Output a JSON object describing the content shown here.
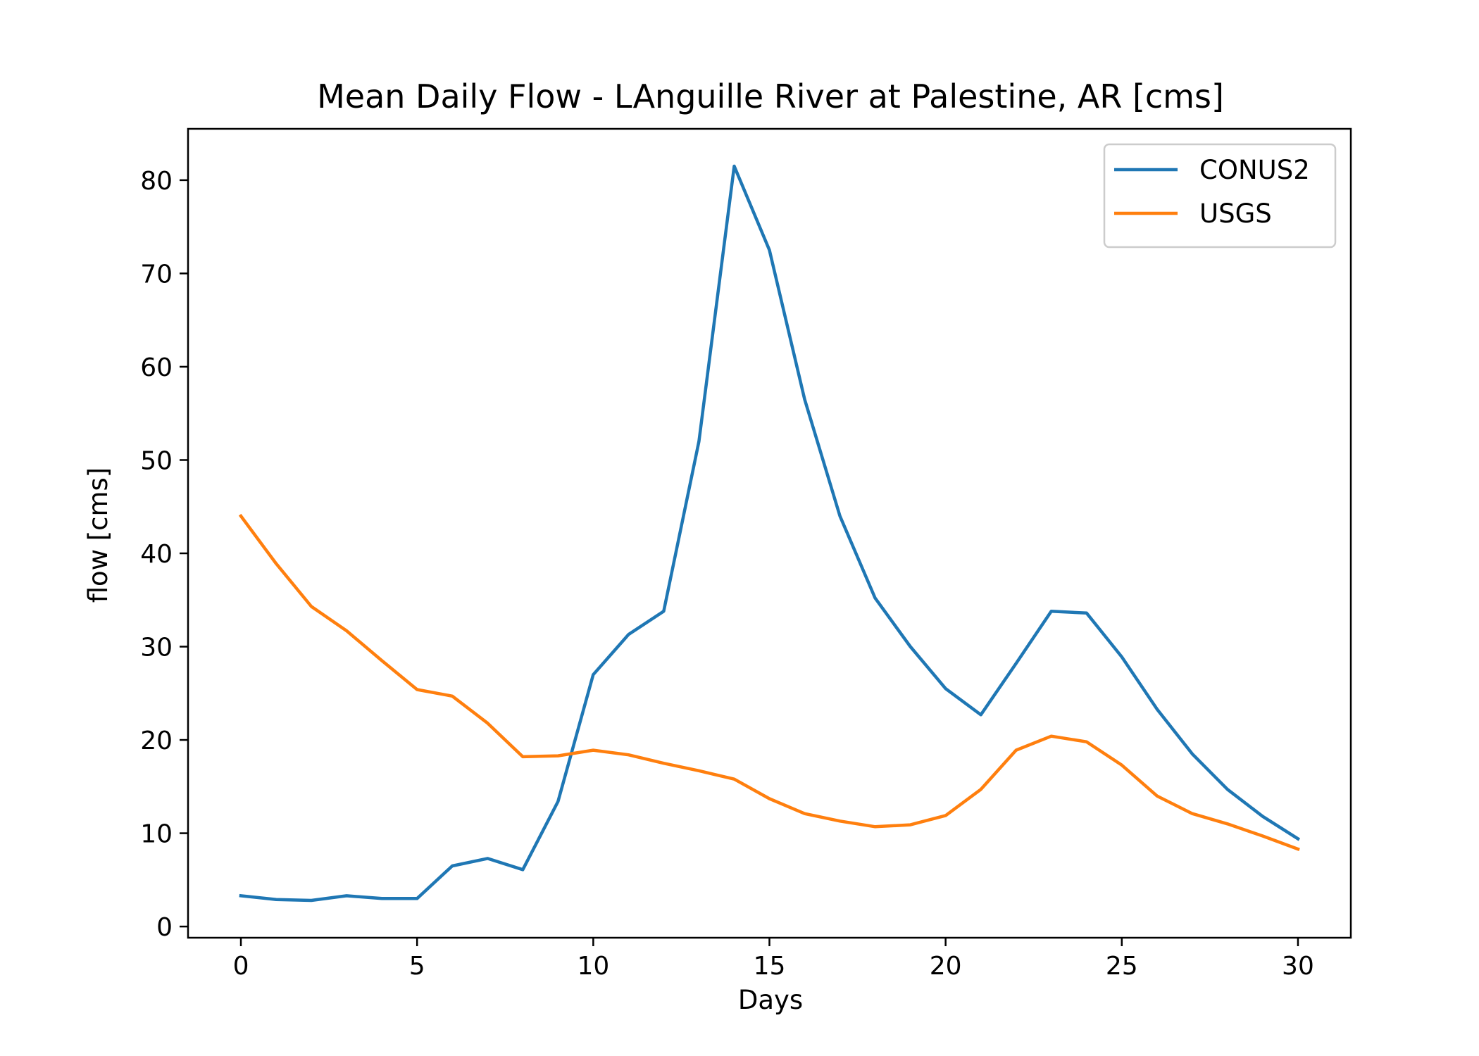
{
  "chart_data": {
    "type": "line",
    "title": "Mean Daily Flow - LAnguille River at Palestine, AR [cms]",
    "xlabel": "Days",
    "ylabel": "flow [cms]",
    "xlim": [
      -1.5,
      31.5
    ],
    "ylim": [
      -1.2,
      85.5
    ],
    "xticks": [
      0,
      5,
      10,
      15,
      20,
      25,
      30
    ],
    "yticks": [
      0,
      10,
      20,
      30,
      40,
      50,
      60,
      70,
      80
    ],
    "grid": false,
    "legend": {
      "position": "top-right"
    },
    "x": [
      0,
      1,
      2,
      3,
      4,
      5,
      6,
      7,
      8,
      9,
      10,
      11,
      12,
      13,
      14,
      15,
      16,
      17,
      18,
      19,
      20,
      21,
      22,
      23,
      24,
      25,
      26,
      27,
      28,
      29,
      30
    ],
    "series": [
      {
        "name": "CONUS2",
        "color": "#1f77b4",
        "values": [
          3.3,
          2.9,
          2.8,
          3.3,
          3.0,
          3.0,
          6.5,
          7.3,
          6.1,
          13.4,
          27.0,
          31.3,
          33.8,
          52.0,
          81.5,
          72.5,
          56.5,
          44.0,
          35.2,
          30.0,
          25.5,
          22.7,
          28.2,
          33.8,
          33.6,
          28.9,
          23.3,
          18.5,
          14.7,
          11.8,
          9.4
        ]
      },
      {
        "name": "USGS",
        "color": "#ff7f0e",
        "values": [
          44.0,
          38.9,
          34.3,
          31.7,
          28.5,
          25.4,
          24.7,
          21.8,
          18.2,
          18.3,
          18.9,
          18.4,
          17.5,
          16.7,
          15.8,
          13.7,
          12.1,
          11.3,
          10.7,
          10.9,
          11.9,
          14.7,
          18.9,
          20.4,
          19.8,
          17.3,
          14.0,
          12.1,
          11.0,
          9.7,
          8.3
        ]
      }
    ]
  }
}
